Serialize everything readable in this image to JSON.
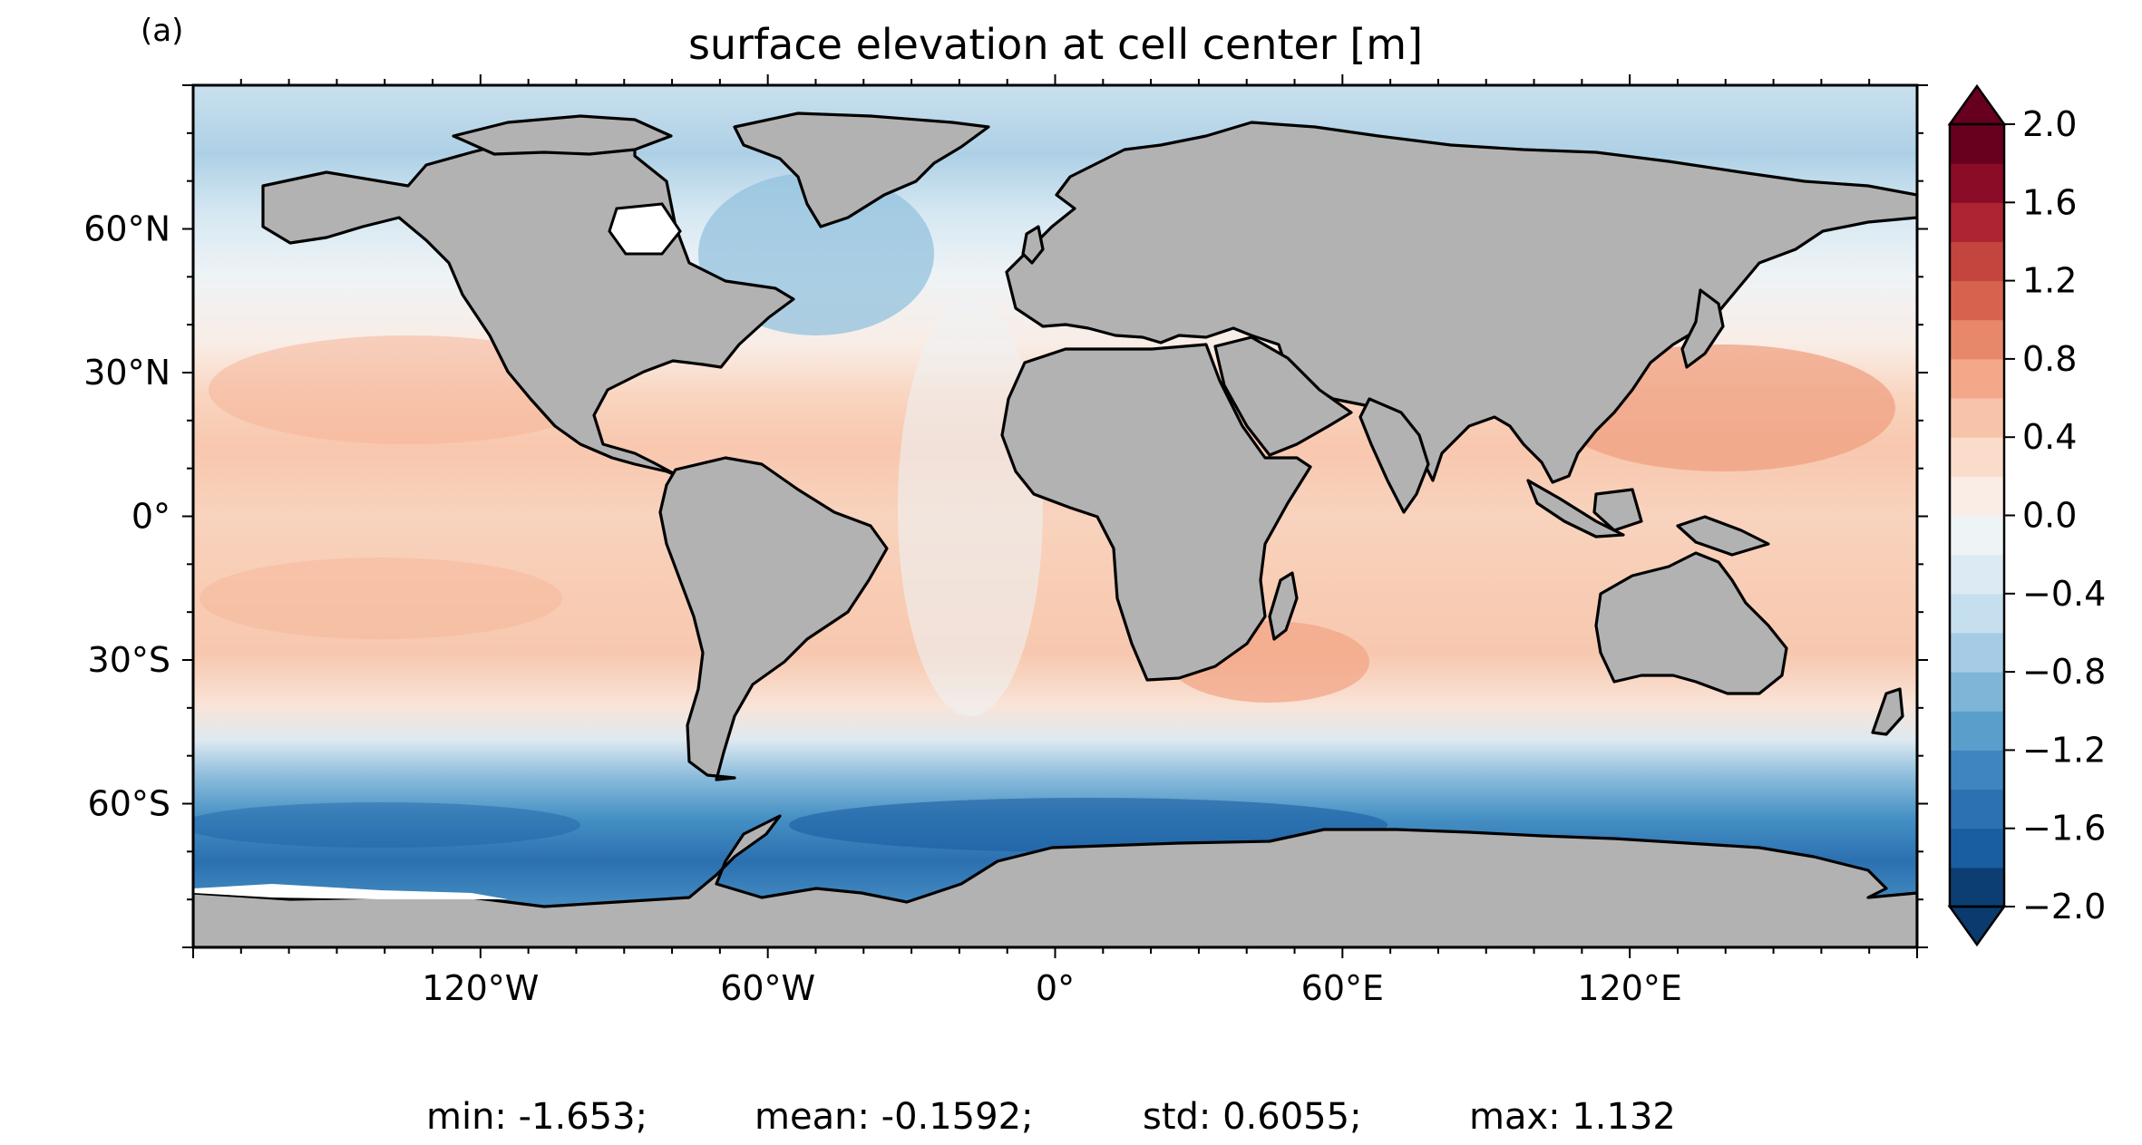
{
  "panel_label": "(a)",
  "title": "surface elevation at cell center [m]",
  "stats": {
    "min": "min: -1.653;",
    "mean": "mean: -0.1592;",
    "std": "std: 0.6055;",
    "max": "max: 1.132"
  },
  "colors": {
    "land": "#b2b2b2",
    "coast": "#000000",
    "colormap": [
      "#0d3e73",
      "#1a5ea2",
      "#2c71b1",
      "#3e86be",
      "#5a9fcc",
      "#7fb6d8",
      "#a5cce4",
      "#c5dfee",
      "#dceaf3",
      "#eef3f6",
      "#f9ede6",
      "#fbdccb",
      "#f7c4ab",
      "#f3a889",
      "#e8886b",
      "#d7634f",
      "#c4453d",
      "#ad2432",
      "#8a0c27",
      "#67001f"
    ]
  },
  "chart_data": {
    "type": "heatmap",
    "title": "surface elevation at cell center [m]",
    "projection": "PlateCarree",
    "xlim": [
      -180,
      180
    ],
    "ylim": [
      -90,
      90
    ],
    "x_ticks": [
      {
        "value": -120,
        "label": "120°W"
      },
      {
        "value": -60,
        "label": "60°W"
      },
      {
        "value": 0,
        "label": "0°"
      },
      {
        "value": 60,
        "label": "60°E"
      },
      {
        "value": 120,
        "label": "120°E"
      }
    ],
    "y_ticks": [
      {
        "value": 60,
        "label": "60°N"
      },
      {
        "value": 30,
        "label": "30°N"
      },
      {
        "value": 0,
        "label": "0°"
      },
      {
        "value": -30,
        "label": "30°S"
      },
      {
        "value": -60,
        "label": "60°S"
      }
    ],
    "colorbar": {
      "vmin": -2.0,
      "vmax": 2.0,
      "step": 0.2,
      "extend": "both",
      "tick_values": [
        2.0,
        1.6,
        1.2,
        0.8,
        0.4,
        0.0,
        -0.4,
        -0.8,
        -1.2,
        -1.6,
        -2.0
      ],
      "tick_labels": [
        "2.0",
        "1.6",
        "1.2",
        "0.8",
        "0.4",
        "0.0",
        "−0.4",
        "−0.8",
        "−1.2",
        "−1.6",
        "−2.0"
      ]
    },
    "zonal_profile": [
      {
        "lat": 90,
        "value": -0.6
      },
      {
        "lat": 80,
        "value": -0.7
      },
      {
        "lat": 70,
        "value": -0.6
      },
      {
        "lat": 60,
        "value": -0.4
      },
      {
        "lat": 50,
        "value": -0.2
      },
      {
        "lat": 40,
        "value": 0.1
      },
      {
        "lat": 30,
        "value": 0.4
      },
      {
        "lat": 20,
        "value": 0.5
      },
      {
        "lat": 10,
        "value": 0.4
      },
      {
        "lat": 0,
        "value": 0.35
      },
      {
        "lat": -10,
        "value": 0.4
      },
      {
        "lat": -20,
        "value": 0.5
      },
      {
        "lat": -30,
        "value": 0.45
      },
      {
        "lat": -40,
        "value": 0.2
      },
      {
        "lat": -45,
        "value": -0.2
      },
      {
        "lat": -50,
        "value": -0.8
      },
      {
        "lat": -55,
        "value": -1.2
      },
      {
        "lat": -60,
        "value": -1.5
      },
      {
        "lat": -65,
        "value": -1.6
      },
      {
        "lat": -70,
        "value": -1.5
      },
      {
        "lat": -75,
        "value": -1.3
      }
    ],
    "legend": "colorbar right"
  }
}
